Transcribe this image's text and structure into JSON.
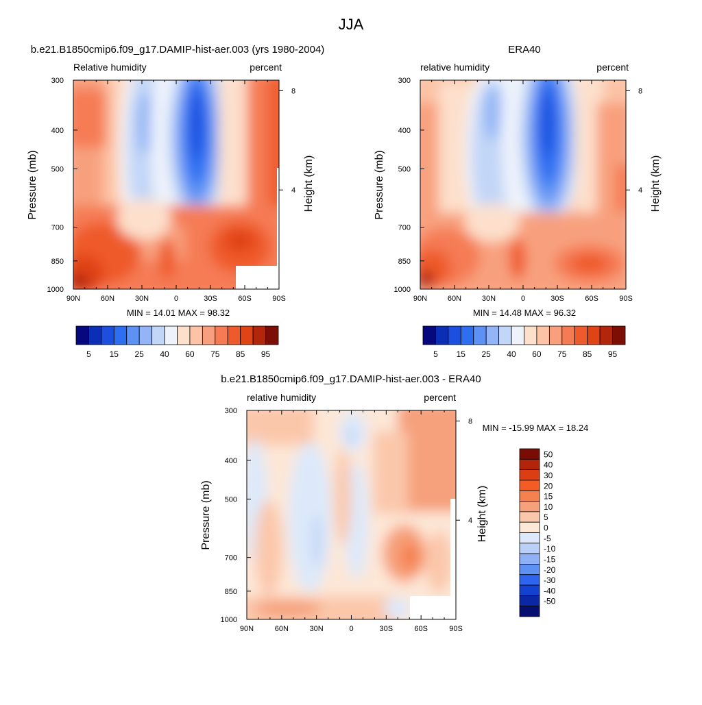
{
  "figure": {
    "title": "JJA"
  },
  "chart_data": [
    {
      "type": "heatmap",
      "panel": "model",
      "title": "b.e21.B1850cmip6.f09_g17.DAMIP-hist-aer.003 (yrs 1980-2004)",
      "left_subtitle": "Relative humidity",
      "right_subtitle": "percent",
      "xlabel": "",
      "ylabel": "Pressure (mb)",
      "y2label": "Height (km)",
      "x_ticks": [
        "90N",
        "60N",
        "30N",
        "0",
        "30S",
        "60S",
        "90S"
      ],
      "x_range": [
        90,
        -90
      ],
      "y_ticks": [
        300,
        400,
        500,
        700,
        850,
        1000
      ],
      "y_range": [
        1000,
        300
      ],
      "y_scale": "log",
      "y2_ticks": [
        8,
        4
      ],
      "min_max_text": "MIN =  14.01  MAX =  98.32",
      "min": 14.01,
      "max": 98.32,
      "colorbar_levels": [
        5,
        10,
        15,
        20,
        25,
        30,
        40,
        50,
        60,
        65,
        70,
        75,
        80,
        85,
        90,
        95
      ],
      "colorbar_labels": [
        "5",
        "15",
        "25",
        "40",
        "60",
        "75",
        "85",
        "95"
      ],
      "masked_region": {
        "lat_range": [
          -50,
          -90
        ],
        "pressure_range": [
          930,
          1000
        ]
      }
    },
    {
      "type": "heatmap",
      "panel": "obs",
      "title": "ERA40",
      "left_subtitle": "relative humidity",
      "right_subtitle": "percent",
      "xlabel": "",
      "ylabel": "Pressure (mb)",
      "y2label": "Height (km)",
      "x_ticks": [
        "90N",
        "60N",
        "30N",
        "0",
        "30S",
        "60S",
        "90S"
      ],
      "x_range": [
        90,
        -90
      ],
      "y_ticks": [
        300,
        400,
        500,
        700,
        850,
        1000
      ],
      "y_range": [
        1000,
        300
      ],
      "y_scale": "log",
      "y2_ticks": [
        8,
        4
      ],
      "min_max_text": "MIN =  14.48  MAX =  96.32",
      "min": 14.48,
      "max": 96.32,
      "colorbar_levels": [
        5,
        10,
        15,
        20,
        25,
        30,
        40,
        50,
        60,
        65,
        70,
        75,
        80,
        85,
        90,
        95
      ],
      "colorbar_labels": [
        "5",
        "15",
        "25",
        "40",
        "60",
        "75",
        "85",
        "95"
      ]
    },
    {
      "type": "heatmap",
      "panel": "diff",
      "title": "b.e21.B1850cmip6.f09_g17.DAMIP-hist-aer.003 - ERA40",
      "left_subtitle": "relative humidity",
      "right_subtitle": "percent",
      "xlabel": "",
      "ylabel": "Pressure (mb)",
      "y2label": "Height (km)",
      "x_ticks": [
        "90N",
        "60N",
        "30N",
        "0",
        "30S",
        "60S",
        "90S"
      ],
      "x_range": [
        90,
        -90
      ],
      "y_ticks": [
        300,
        400,
        500,
        700,
        850,
        1000
      ],
      "y_range": [
        1000,
        300
      ],
      "y_scale": "log",
      "y2_ticks": [
        8,
        4
      ],
      "min_max_text": "MIN = -15.99  MAX =  18.24",
      "min": -15.99,
      "max": 18.24,
      "colorbar_levels": [
        50,
        40,
        30,
        20,
        15,
        10,
        5,
        0,
        -5,
        -10,
        -15,
        -20,
        -30,
        -40,
        -50
      ],
      "colorbar_labels": [
        "50",
        "40",
        "30",
        "20",
        "15",
        "10",
        "5",
        "0",
        "-5",
        "-10",
        "-15",
        "-20",
        "-30",
        "-40",
        "-50"
      ],
      "masked_region": {
        "lat_range": [
          -50,
          -90
        ],
        "pressure_range": [
          930,
          1000
        ]
      }
    }
  ],
  "palettes": {
    "full": [
      "#08087e",
      "#0b2fb4",
      "#1c4fe0",
      "#2e6ff2",
      "#5d91f4",
      "#93b5f5",
      "#c2d6f7",
      "#eef3fb",
      "#fde0cc",
      "#fcc3a6",
      "#f8a07e",
      "#f57b54",
      "#ef5a2c",
      "#df4316",
      "#b2270c",
      "#7d0e06"
    ],
    "diff": [
      "#790d05",
      "#b3250a",
      "#dd3d12",
      "#f45c26",
      "#f5814f",
      "#f6a07c",
      "#fbc7ab",
      "#fde7d7",
      "#dde9fa",
      "#bcd0f7",
      "#90b1f5",
      "#5f91f3",
      "#2f64ee",
      "#1441cf",
      "#0b27a5",
      "#060f70"
    ]
  }
}
